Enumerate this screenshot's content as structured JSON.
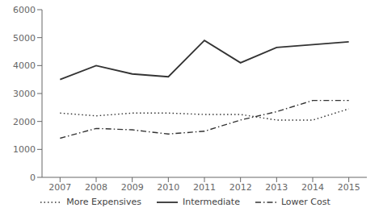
{
  "chart_data": {
    "type": "line",
    "x": [
      2007,
      2008,
      2009,
      2010,
      2011,
      2012,
      2013,
      2014,
      2015
    ],
    "series": [
      {
        "name": "More Expensives",
        "color": "#333333",
        "line_style": "dotted",
        "values": [
          2300,
          2200,
          2300,
          2300,
          2250,
          2250,
          2050,
          2050,
          2450
        ]
      },
      {
        "name": "Intermediate",
        "color": "#333333",
        "line_style": "solid",
        "values": [
          3500,
          4000,
          3700,
          3600,
          4900,
          4100,
          4650,
          4750,
          4850
        ]
      },
      {
        "name": "Lower Cost",
        "color": "#333333",
        "line_style": "dashdot",
        "values": [
          1400,
          1750,
          1700,
          1550,
          1650,
          2050,
          2350,
          2750,
          2750
        ]
      }
    ],
    "xlim": [
      2006.5,
      2015.5
    ],
    "xticks": [
      2007,
      2008,
      2009,
      2010,
      2011,
      2012,
      2013,
      2014,
      2015
    ],
    "ylim": [
      0,
      6000
    ],
    "yticks": [
      0,
      1000,
      2000,
      3000,
      4000,
      5000,
      6000
    ],
    "grid": false,
    "legend": "bottom"
  }
}
